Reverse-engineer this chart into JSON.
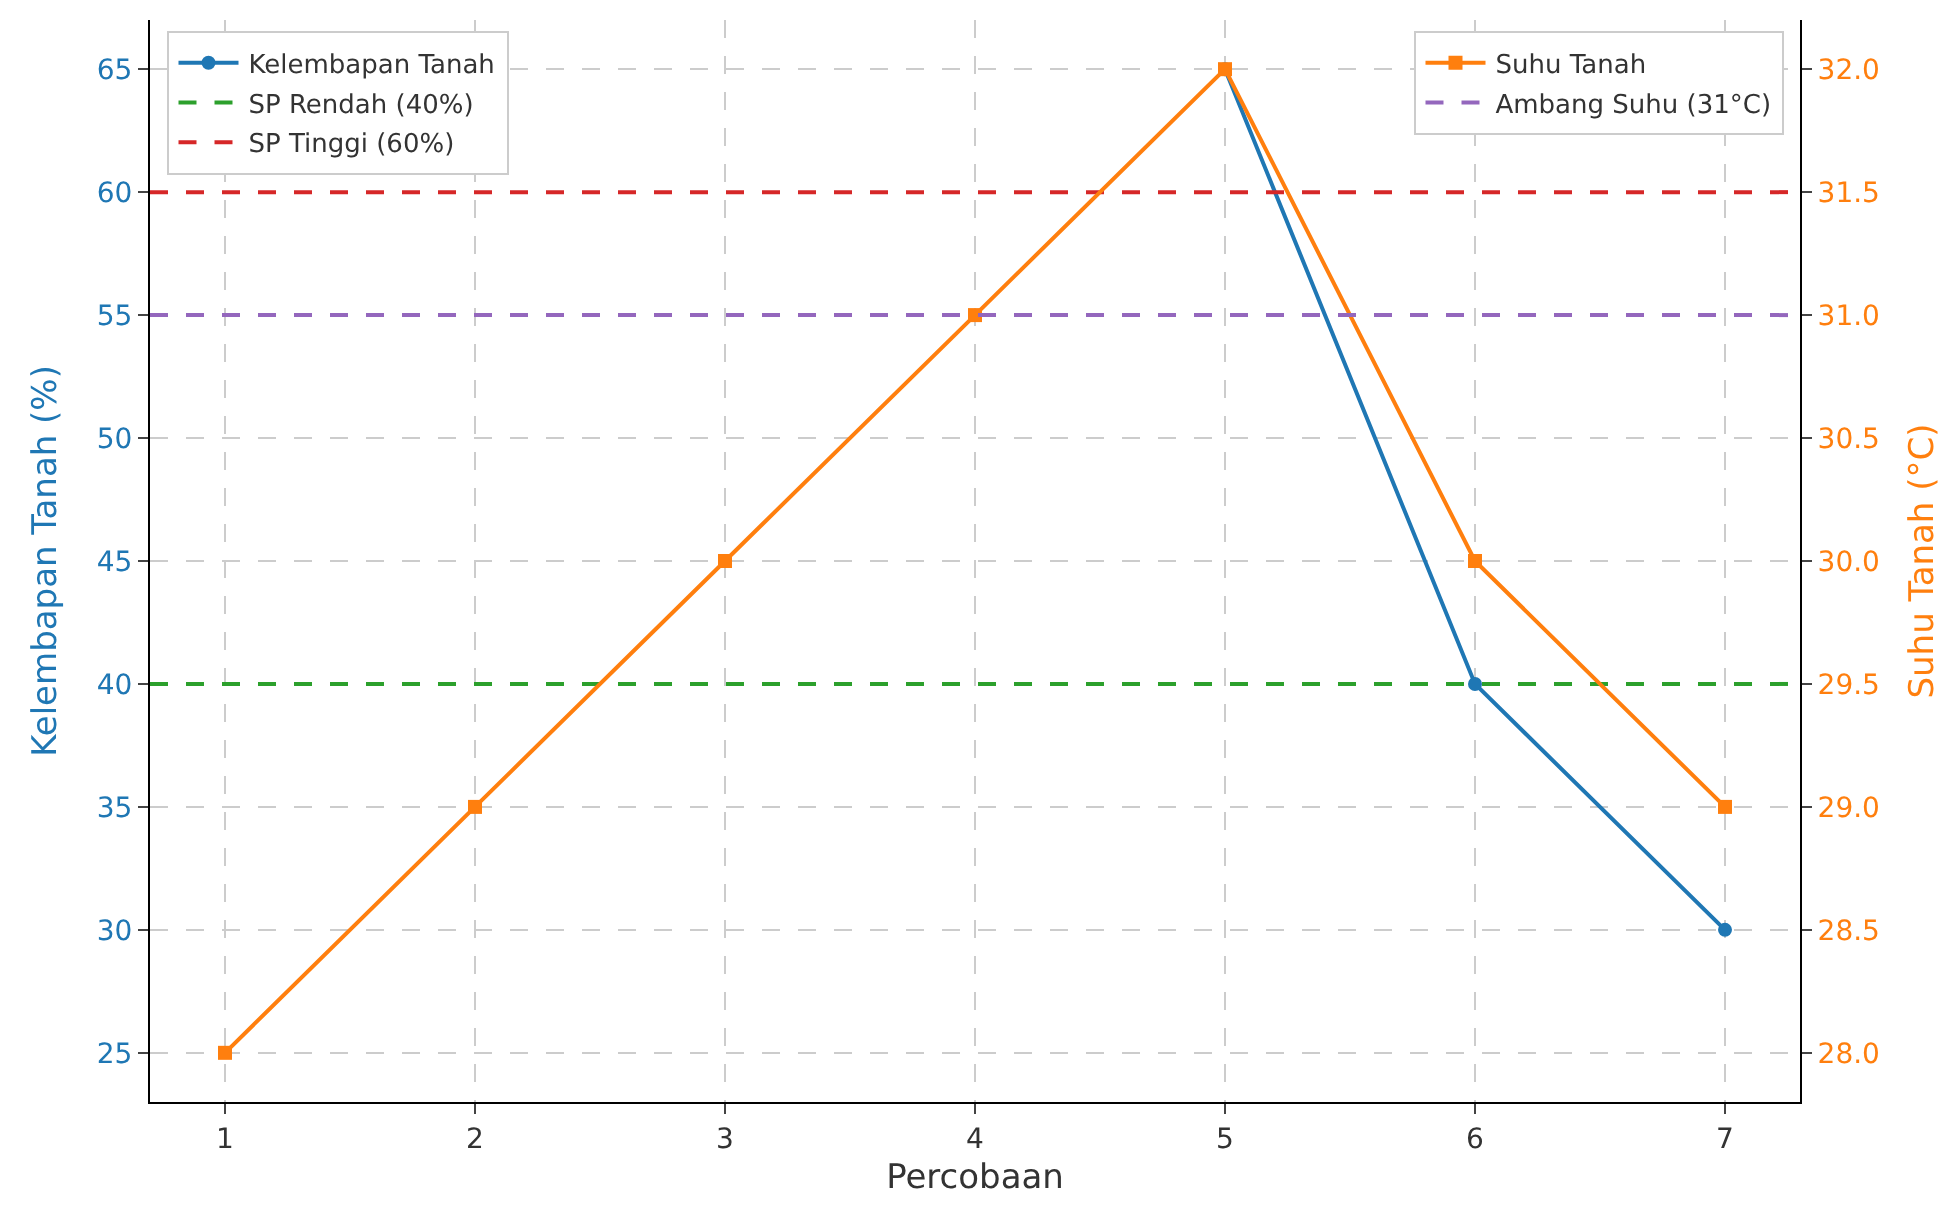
{
  "chart_data": {
    "type": "line",
    "xlabel": "Percobaan",
    "ylabel": "Kelembapan Tanah (%)",
    "y2label": "Suhu Tanah (°C)",
    "x": [
      1,
      2,
      3,
      4,
      5,
      6,
      7
    ],
    "series": [
      {
        "name": "Kelembapan Tanah",
        "color": "#1f77b4",
        "marker": "circle",
        "values": [
          null,
          null,
          null,
          null,
          65,
          40,
          30
        ]
      },
      {
        "name": "Suhu Tanah",
        "color": "#ff7f0e",
        "marker": "square",
        "axis": "y2",
        "values": [
          28,
          29,
          30,
          31,
          32,
          30,
          29
        ]
      }
    ],
    "ref_lines": [
      {
        "axis": "y",
        "value": 40,
        "label": "SP Rendah (40%)",
        "color": "#2ca02c",
        "line_style": "dashed"
      },
      {
        "axis": "y",
        "value": 60,
        "label": "SP Tinggi (60%)",
        "color": "#d62728",
        "line_style": "dashed"
      },
      {
        "axis": "y2",
        "value": 31,
        "label": "Ambang Suhu (31°C)",
        "color": "#9467bd",
        "line_style": "dashed"
      }
    ],
    "xlim": [
      0.7,
      7.3
    ],
    "xticks": [
      1,
      2,
      3,
      4,
      5,
      6,
      7
    ],
    "ylim": [
      23,
      67
    ],
    "yticks": [
      25,
      30,
      35,
      40,
      45,
      50,
      55,
      60,
      65
    ],
    "y2lim": [
      27.8,
      32.2
    ],
    "y2ticks": [
      {
        "value": 28,
        "label": "28.0"
      },
      {
        "value": 28.5,
        "label": "28.5"
      },
      {
        "value": 29,
        "label": "29.0"
      },
      {
        "value": 29.5,
        "label": "29.5"
      },
      {
        "value": 30,
        "label": "30.0"
      },
      {
        "value": 30.5,
        "label": "30.5"
      },
      {
        "value": 31,
        "label": "31.0"
      },
      {
        "value": 31.5,
        "label": "31.5"
      },
      {
        "value": 32,
        "label": "32.0"
      }
    ],
    "grid": true,
    "legend": "top",
    "line_style": "solid"
  }
}
